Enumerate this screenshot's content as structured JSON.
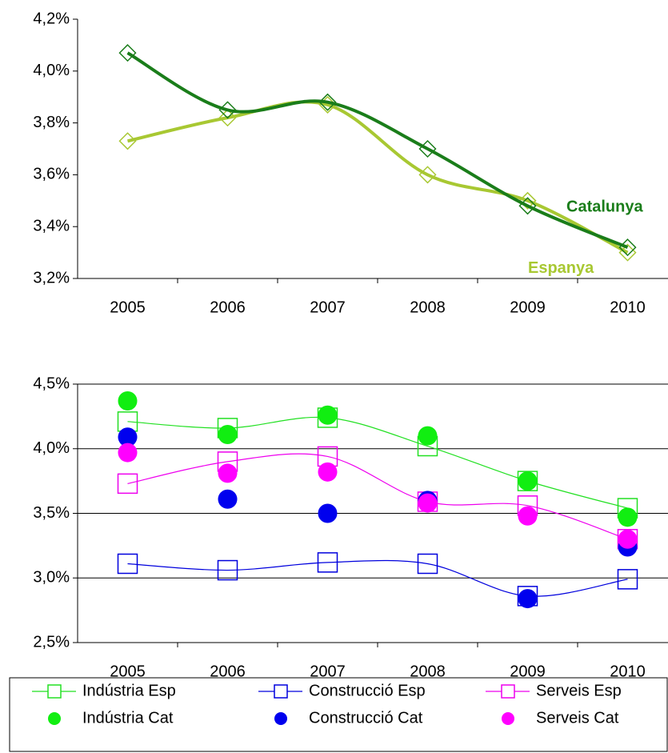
{
  "chart_data": [
    {
      "type": "line",
      "categories": [
        "2005",
        "2006",
        "2007",
        "2008",
        "2009",
        "2010"
      ],
      "ylim": [
        3.2,
        4.2
      ],
      "yticks": [
        {
          "value": 3.2,
          "label": "3,2%"
        },
        {
          "value": 3.4,
          "label": "3,4%"
        },
        {
          "value": 3.6,
          "label": "3,6%"
        },
        {
          "value": 3.8,
          "label": "3,8%"
        },
        {
          "value": 4.0,
          "label": "4,0%"
        },
        {
          "value": 4.2,
          "label": "4,2%"
        }
      ],
      "grid": false,
      "legend": "inline",
      "smooth": true,
      "series": [
        {
          "name": "Espanya",
          "color": "#a8c832",
          "marker": "diamond",
          "line": true,
          "values": [
            3.73,
            3.82,
            3.87,
            3.6,
            3.5,
            3.3
          ]
        },
        {
          "name": "Catalunya",
          "color": "#1a7d1a",
          "marker": "diamond",
          "line": true,
          "values": [
            4.07,
            3.85,
            3.88,
            3.7,
            3.48,
            3.32
          ]
        }
      ]
    },
    {
      "type": "line",
      "categories": [
        "2005",
        "2006",
        "2007",
        "2008",
        "2009",
        "2010"
      ],
      "ylim": [
        2.5,
        4.5
      ],
      "yticks": [
        {
          "value": 2.5,
          "label": "2,5%"
        },
        {
          "value": 3.0,
          "label": "3,0%"
        },
        {
          "value": 3.5,
          "label": "3,5%"
        },
        {
          "value": 4.0,
          "label": "4,0%"
        },
        {
          "value": 4.5,
          "label": "4,5%"
        }
      ],
      "grid": true,
      "legend": "bottom",
      "smooth": true,
      "series": [
        {
          "name": "Indústria Esp",
          "color": "#22e022",
          "marker": "square",
          "line": true,
          "values": [
            4.21,
            4.16,
            4.24,
            4.02,
            3.75,
            3.54
          ]
        },
        {
          "name": "Construcció Esp",
          "color": "#0000dd",
          "marker": "square",
          "line": true,
          "values": [
            3.11,
            3.06,
            3.12,
            3.11,
            2.86,
            2.99
          ]
        },
        {
          "name": "Serveis Esp",
          "color": "#ee00ee",
          "marker": "square",
          "line": true,
          "values": [
            3.73,
            3.9,
            3.94,
            3.59,
            3.56,
            3.3
          ]
        },
        {
          "name": "Indústria Cat",
          "color": "#11ee11",
          "marker": "circle",
          "line": false,
          "values": [
            4.37,
            4.11,
            4.26,
            4.1,
            3.75,
            3.47
          ]
        },
        {
          "name": "Construcció Cat",
          "color": "#0000ee",
          "marker": "circle",
          "line": false,
          "values": [
            4.09,
            3.61,
            3.5,
            3.6,
            2.84,
            3.24
          ]
        },
        {
          "name": "Serveis Cat",
          "color": "#ff00ff",
          "marker": "circle",
          "line": false,
          "values": [
            3.97,
            3.81,
            3.82,
            3.58,
            3.48,
            3.3
          ]
        }
      ]
    }
  ]
}
